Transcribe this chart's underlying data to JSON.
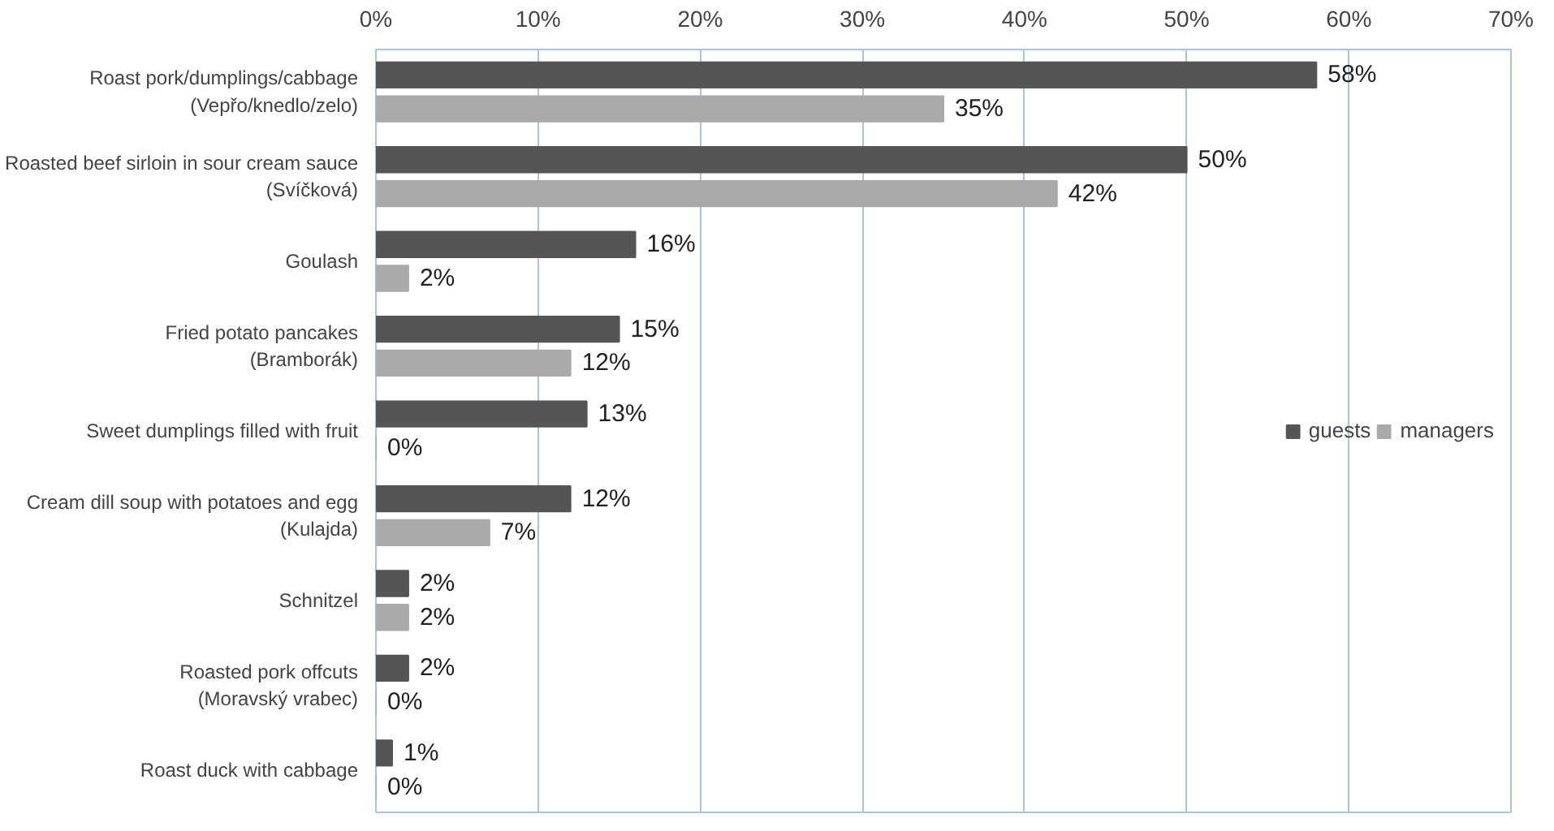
{
  "chart_data": {
    "type": "bar",
    "orientation": "horizontal",
    "categories": [
      "Roast pork/dumplings/cabbage\n(Vepřo/knedlo/zelo)",
      "Roasted beef sirloin in sour cream sauce\n(Svíčková)",
      "Goulash",
      "Fried potato pancakes\n(Bramborák)",
      "Sweet dumplings filled with fruit",
      "Cream dill soup with potatoes and egg\n(Kulajda)",
      "Schnitzel",
      "Roasted pork offcuts\n(Moravský vrabec)",
      "Roast duck with cabbage"
    ],
    "series": [
      {
        "name": "guests",
        "color": "#555555",
        "values": [
          58,
          50,
          16,
          15,
          13,
          12,
          2,
          2,
          1
        ],
        "value_labels": [
          "58%",
          "50%",
          "16%",
          "15%",
          "13%",
          "12%",
          "2%",
          "2%",
          "1%"
        ]
      },
      {
        "name": "managers",
        "color": "#aaaaaa",
        "values": [
          35,
          42,
          2,
          12,
          0,
          7,
          2,
          0,
          0
        ],
        "value_labels": [
          "35%",
          "42%",
          "2%",
          "12%",
          "0%",
          "7%",
          "2%",
          "0%",
          "0%"
        ]
      }
    ],
    "xlim": [
      0,
      70
    ],
    "xticks": [
      {
        "value": 0,
        "label": "0%"
      },
      {
        "value": 10,
        "label": "10%"
      },
      {
        "value": 20,
        "label": "20%"
      },
      {
        "value": 30,
        "label": "30%"
      },
      {
        "value": 40,
        "label": "40%"
      },
      {
        "value": 50,
        "label": "50%"
      },
      {
        "value": 60,
        "label": "60%"
      },
      {
        "value": 70,
        "label": "70%"
      }
    ],
    "grid": "x",
    "legend": "right"
  }
}
